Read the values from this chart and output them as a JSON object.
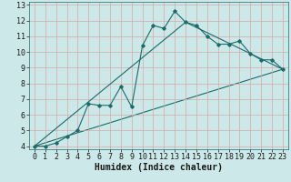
{
  "xlabel": "Humidex (Indice chaleur)",
  "bg_color": "#cce8e8",
  "grid_color": "#b0cccc",
  "line_color": "#1a6b6b",
  "xlim": [
    -0.5,
    23.5
  ],
  "ylim": [
    3.8,
    13.2
  ],
  "xticks": [
    0,
    1,
    2,
    3,
    4,
    5,
    6,
    7,
    8,
    9,
    10,
    11,
    12,
    13,
    14,
    15,
    16,
    17,
    18,
    19,
    20,
    21,
    22,
    23
  ],
  "yticks": [
    4,
    5,
    6,
    7,
    8,
    9,
    10,
    11,
    12,
    13
  ],
  "series1_x": [
    0,
    1,
    2,
    3,
    4,
    5,
    6,
    7,
    8,
    9,
    10,
    11,
    12,
    13,
    14,
    15,
    16,
    17,
    18,
    19,
    20,
    21,
    22,
    23
  ],
  "series1_y": [
    4.0,
    4.0,
    4.2,
    4.6,
    5.0,
    6.7,
    6.6,
    6.6,
    7.8,
    6.5,
    10.4,
    11.7,
    11.5,
    12.6,
    11.9,
    11.7,
    11.0,
    10.5,
    10.5,
    10.7,
    9.9,
    9.5,
    9.5,
    8.9
  ],
  "series2_x": [
    0,
    14,
    23
  ],
  "series2_y": [
    4.0,
    11.9,
    8.9
  ],
  "series3_x": [
    0,
    23
  ],
  "series3_y": [
    4.0,
    8.9
  ],
  "tick_fontsize": 6.0,
  "xlabel_fontsize": 7.0
}
